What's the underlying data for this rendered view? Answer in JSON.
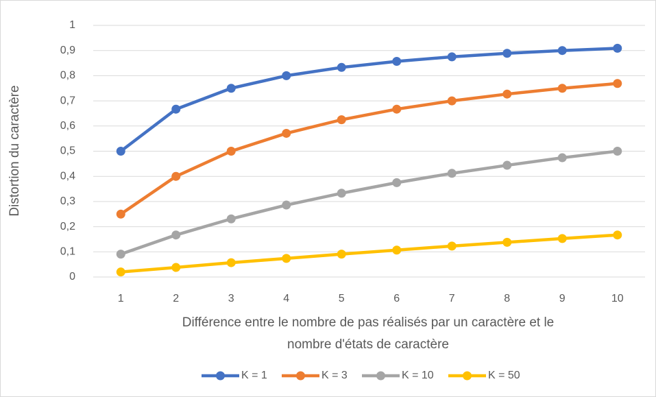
{
  "chart_data": {
    "type": "line",
    "categories": [
      "1",
      "2",
      "3",
      "4",
      "5",
      "6",
      "7",
      "8",
      "9",
      "10"
    ],
    "series": [
      {
        "name": "K = 1",
        "color": "#4472c4",
        "values": [
          0.5,
          0.667,
          0.75,
          0.8,
          0.833,
          0.857,
          0.875,
          0.889,
          0.9,
          0.909
        ]
      },
      {
        "name": "K = 3",
        "color": "#ed7d31",
        "values": [
          0.25,
          0.4,
          0.5,
          0.571,
          0.625,
          0.667,
          0.7,
          0.727,
          0.75,
          0.769
        ]
      },
      {
        "name": "K = 10",
        "color": "#a5a5a5",
        "values": [
          0.091,
          0.167,
          0.231,
          0.286,
          0.333,
          0.375,
          0.412,
          0.444,
          0.474,
          0.5
        ]
      },
      {
        "name": "K = 50",
        "color": "#ffc000",
        "values": [
          0.02,
          0.038,
          0.057,
          0.074,
          0.091,
          0.107,
          0.123,
          0.138,
          0.153,
          0.167
        ]
      }
    ],
    "xlabel": [
      "Différence entre le nombre de pas réalisés par un caractère et le",
      "nombre d'états de caractère"
    ],
    "ylabel": "Distortion du caractère",
    "ylim": [
      0,
      1
    ],
    "yticks": [
      0,
      {
        "value": 0.1,
        "label": "0,1"
      },
      {
        "value": 0.2,
        "label": "0,2"
      },
      {
        "value": 0.3,
        "label": "0,3"
      },
      {
        "value": 0.4,
        "label": "0,4"
      },
      {
        "value": 0.5,
        "label": "0,5"
      },
      {
        "value": 0.6,
        "label": "0,6"
      },
      {
        "value": 0.7,
        "label": "0,7"
      },
      {
        "value": 0.8,
        "label": "0,8"
      },
      {
        "value": 0.9,
        "label": "0,9"
      },
      1
    ],
    "grid": true,
    "legend": "bottom"
  }
}
